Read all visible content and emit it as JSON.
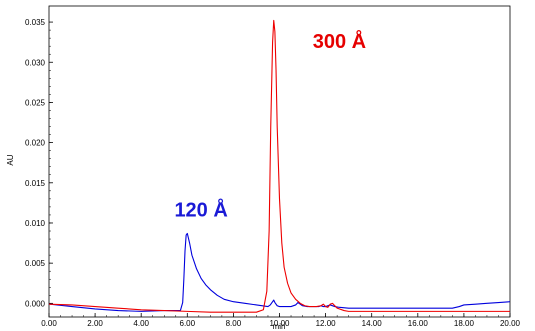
{
  "chart_data": {
    "type": "line",
    "xlabel": "min",
    "ylabel": "AU",
    "xlim": [
      0,
      20
    ],
    "ylim": [
      -0.0017,
      0.037
    ],
    "x_ticks": [
      "0.00",
      "2.00",
      "4.00",
      "6.00",
      "8.00",
      "10.00",
      "12.00",
      "14.00",
      "16.00",
      "18.00",
      "20.00"
    ],
    "y_ticks": [
      "0.000",
      "0.005",
      "0.010",
      "0.015",
      "0.020",
      "0.025",
      "0.030",
      "0.035"
    ],
    "grid": false,
    "series": [
      {
        "color": "#0000dd",
        "x": [
          0,
          1,
          2,
          3,
          4,
          5,
          5.7,
          5.8,
          5.85,
          5.9,
          5.95,
          6.0,
          6.1,
          6.2,
          6.4,
          6.6,
          6.8,
          7.0,
          7.3,
          7.6,
          8.0,
          8.5,
          9.0,
          9.5,
          9.6,
          9.7,
          9.75,
          9.8,
          9.9,
          10.0,
          10.5,
          10.7,
          10.8,
          10.9,
          11.0,
          11.2,
          11.5,
          11.7,
          11.8,
          11.9,
          12.0,
          12.2,
          12.4,
          12.6,
          13,
          14,
          15,
          16,
          17,
          17.5,
          17.8,
          18,
          18.5,
          19,
          19.5,
          20
        ],
        "y": [
          -0.0001,
          -0.0004,
          -0.0007,
          -0.0009,
          -0.001,
          -0.0009,
          -0.0009,
          0.0001,
          0.003,
          0.0065,
          0.0085,
          0.0087,
          0.0075,
          0.006,
          0.0043,
          0.0031,
          0.0023,
          0.0017,
          0.001,
          0.0005,
          0.0002,
          0.0,
          -0.0002,
          -0.0004,
          -0.0002,
          0.0002,
          0.0004,
          0.0001,
          -0.0003,
          -0.0004,
          -0.0004,
          -0.0002,
          0.0001,
          -0.0001,
          -0.0003,
          -0.0004,
          -0.0004,
          -0.0004,
          -0.0003,
          -0.0004,
          -0.0004,
          -0.0002,
          -0.0004,
          -0.0005,
          -0.0006,
          -0.0006,
          -0.0006,
          -0.0006,
          -0.0006,
          -0.0006,
          -0.0004,
          -0.0002,
          -0.0001,
          0.0,
          0.0001,
          0.0002
        ]
      },
      {
        "color": "#ee0000",
        "x": [
          0,
          1,
          2,
          3,
          4,
          5,
          6,
          7,
          8,
          9,
          9.3,
          9.45,
          9.55,
          9.62,
          9.7,
          9.75,
          9.8,
          9.85,
          9.9,
          10.0,
          10.1,
          10.2,
          10.35,
          10.5,
          10.7,
          10.9,
          11.1,
          11.3,
          11.6,
          11.8,
          11.9,
          12.0,
          12.1,
          12.2,
          12.3,
          12.4,
          12.5,
          12.8,
          13,
          14,
          15,
          16,
          17,
          18,
          19,
          20
        ],
        "y": [
          -0.0001,
          -0.0002,
          -0.0004,
          -0.0006,
          -0.0008,
          -0.0009,
          -0.001,
          -0.0011,
          -0.0011,
          -0.0011,
          -0.0008,
          0.0015,
          0.009,
          0.022,
          0.0325,
          0.0352,
          0.0338,
          0.029,
          0.022,
          0.013,
          0.0075,
          0.0045,
          0.0025,
          0.0013,
          0.0005,
          0.0,
          -0.0003,
          -0.0004,
          -0.0004,
          -0.0003,
          -0.0001,
          -0.0004,
          -0.0005,
          -0.0001,
          0.0,
          -0.0003,
          -0.0006,
          -0.0009,
          -0.001,
          -0.001,
          -0.001,
          -0.001,
          -0.001,
          -0.001,
          -0.001,
          -0.001
        ]
      }
    ],
    "annotations": [
      {
        "text": "120 Å",
        "x": 6.6,
        "y": 0.0108,
        "color": "#1a1ad6"
      },
      {
        "text": "300 Å",
        "x": 12.6,
        "y": 0.0318,
        "color": "#e60000"
      }
    ]
  }
}
